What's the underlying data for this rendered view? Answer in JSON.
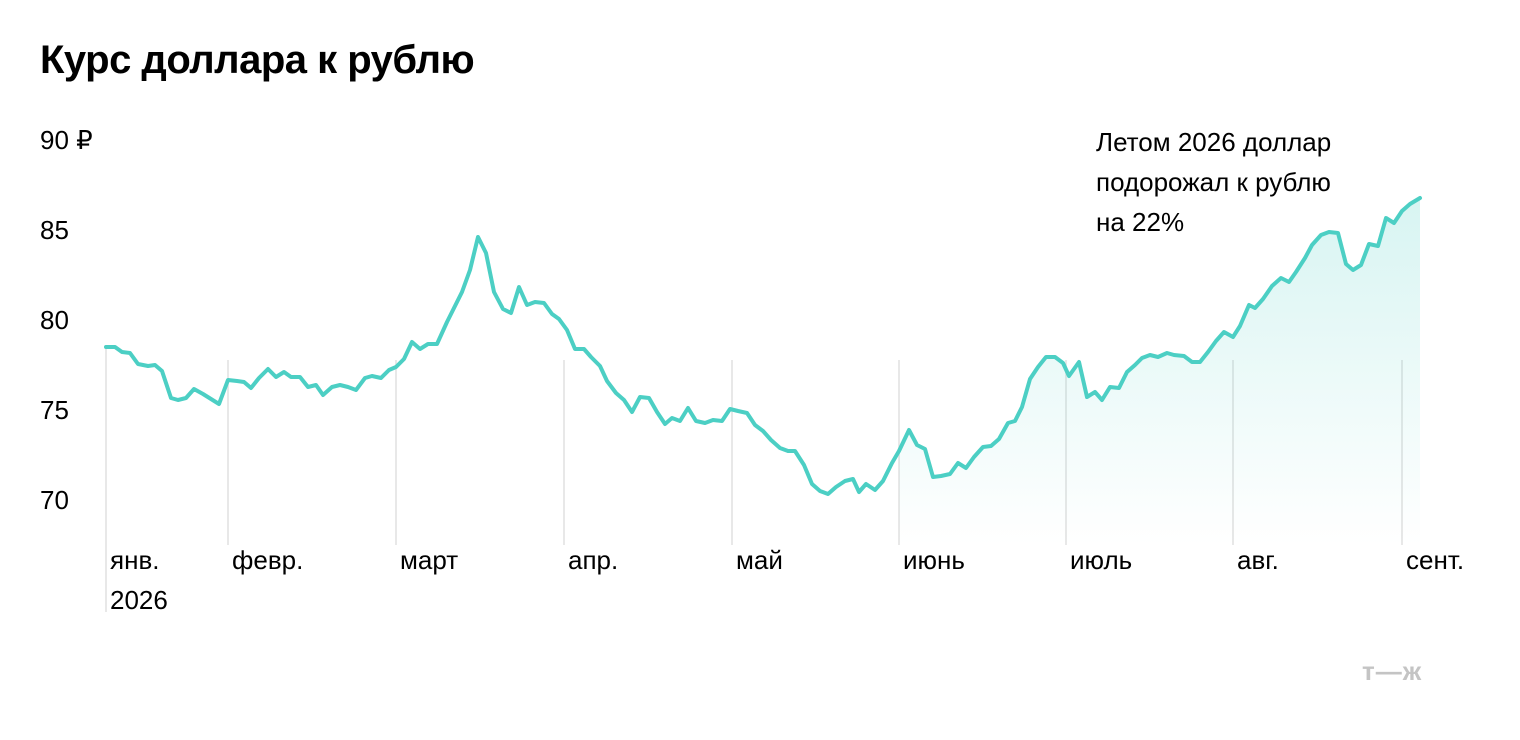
{
  "title": "Курс доллара к рублю",
  "logo": "т—ж",
  "colors": {
    "line": "#4ccfc4",
    "fill": "#4ccfc4",
    "gridline": "#e0e0e0",
    "text": "#000000",
    "logo": "#c4c4c4"
  },
  "chart_data": {
    "type": "area",
    "title": "Курс доллара к рублю",
    "xlabel": "",
    "ylabel": "",
    "ylim": [
      68,
      90
    ],
    "y_ticks": [
      {
        "value": 90,
        "label": "90 ₽"
      },
      {
        "value": 85,
        "label": "85"
      },
      {
        "value": 80,
        "label": "80"
      },
      {
        "value": 75,
        "label": "75"
      },
      {
        "value": 70,
        "label": "70"
      }
    ],
    "x_ticks": [
      {
        "date": "2026-01-01",
        "label": "янв.",
        "label2": "2026"
      },
      {
        "date": "2026-02-01",
        "label": "февр."
      },
      {
        "date": "2026-03-01",
        "label": "март"
      },
      {
        "date": "2026-04-01",
        "label": "апр."
      },
      {
        "date": "2026-05-01",
        "label": "май"
      },
      {
        "date": "2026-06-01",
        "label": "июнь"
      },
      {
        "date": "2026-07-01",
        "label": "июль"
      },
      {
        "date": "2026-08-01",
        "label": "авг."
      },
      {
        "date": "2026-09-01",
        "label": "сент."
      }
    ],
    "annotation": [
      "Летом 2026 доллар",
      "подорожал к рублю",
      "на 22%"
    ],
    "shaded_range": [
      "2026-06-01",
      "2026-09-06"
    ],
    "grid": "vertical lines at month starts",
    "series": [
      {
        "points": [
          [
            "2026-01-01",
            78.45
          ],
          [
            "2026-01-03",
            78.5
          ],
          [
            "2026-01-05",
            78.2
          ],
          [
            "2026-01-07",
            78.15
          ],
          [
            "2026-01-09",
            77.5
          ],
          [
            "2026-01-11",
            77.45
          ],
          [
            "2026-01-13",
            77.5
          ],
          [
            "2026-01-15",
            77.2
          ],
          [
            "2026-01-17",
            75.65
          ],
          [
            "2026-01-19",
            75.55
          ],
          [
            "2026-01-21",
            75.65
          ],
          [
            "2026-01-23",
            76.2
          ],
          [
            "2026-01-25",
            75.9
          ],
          [
            "2026-01-27",
            75.65
          ],
          [
            "2026-01-29",
            75.35
          ],
          [
            "2026-01-31",
            76.7
          ],
          [
            "2026-02-02",
            76.65
          ],
          [
            "2026-02-04",
            76.6
          ],
          [
            "2026-02-06",
            76.25
          ],
          [
            "2026-02-08",
            76.8
          ],
          [
            "2026-02-10",
            77.3
          ],
          [
            "2026-02-12",
            76.9
          ],
          [
            "2026-02-14",
            77.1
          ],
          [
            "2026-02-16",
            76.85
          ],
          [
            "2026-02-18",
            76.85
          ],
          [
            "2026-02-20",
            76.25
          ],
          [
            "2026-02-22",
            76.4
          ],
          [
            "2026-02-24",
            75.85
          ],
          [
            "2026-02-26",
            76.3
          ],
          [
            "2026-02-28",
            76.4
          ],
          [
            "2026-03-02",
            76.3
          ],
          [
            "2026-03-04",
            76.1
          ],
          [
            "2026-03-06",
            76.8
          ],
          [
            "2026-03-08",
            76.95
          ],
          [
            "2026-03-10",
            76.85
          ],
          [
            "2026-03-12",
            77.3
          ],
          [
            "2026-03-14",
            77.45
          ],
          [
            "2026-03-16",
            77.85
          ],
          [
            "2026-03-18",
            78.85
          ],
          [
            "2026-03-20",
            78.45
          ],
          [
            "2026-03-22",
            78.75
          ],
          [
            "2026-03-24",
            78.75
          ],
          [
            "2026-03-26",
            79.95
          ],
          [
            "2026-03-28",
            80.85
          ],
          [
            "2026-03-30",
            81.65
          ],
          [
            "2026-04-01",
            82.85
          ],
          [
            "2026-04-03",
            84.6
          ],
          [
            "2026-04-05",
            83.75
          ],
          [
            "2026-04-07",
            81.55
          ],
          [
            "2026-04-09",
            80.65
          ],
          [
            "2026-04-11",
            80.45
          ],
          [
            "2026-04-13",
            81.85
          ],
          [
            "2026-04-15",
            80.9
          ],
          [
            "2026-04-17",
            81.0
          ],
          [
            "2026-04-19",
            80.95
          ],
          [
            "2026-04-21",
            80.35
          ],
          [
            "2026-04-23",
            80.05
          ],
          [
            "2026-04-25",
            79.45
          ],
          [
            "2026-04-27",
            78.45
          ],
          [
            "2026-04-29",
            78.45
          ],
          [
            "2026-03-31",
            78.45
          ]
        ]
      }
    ]
  }
}
